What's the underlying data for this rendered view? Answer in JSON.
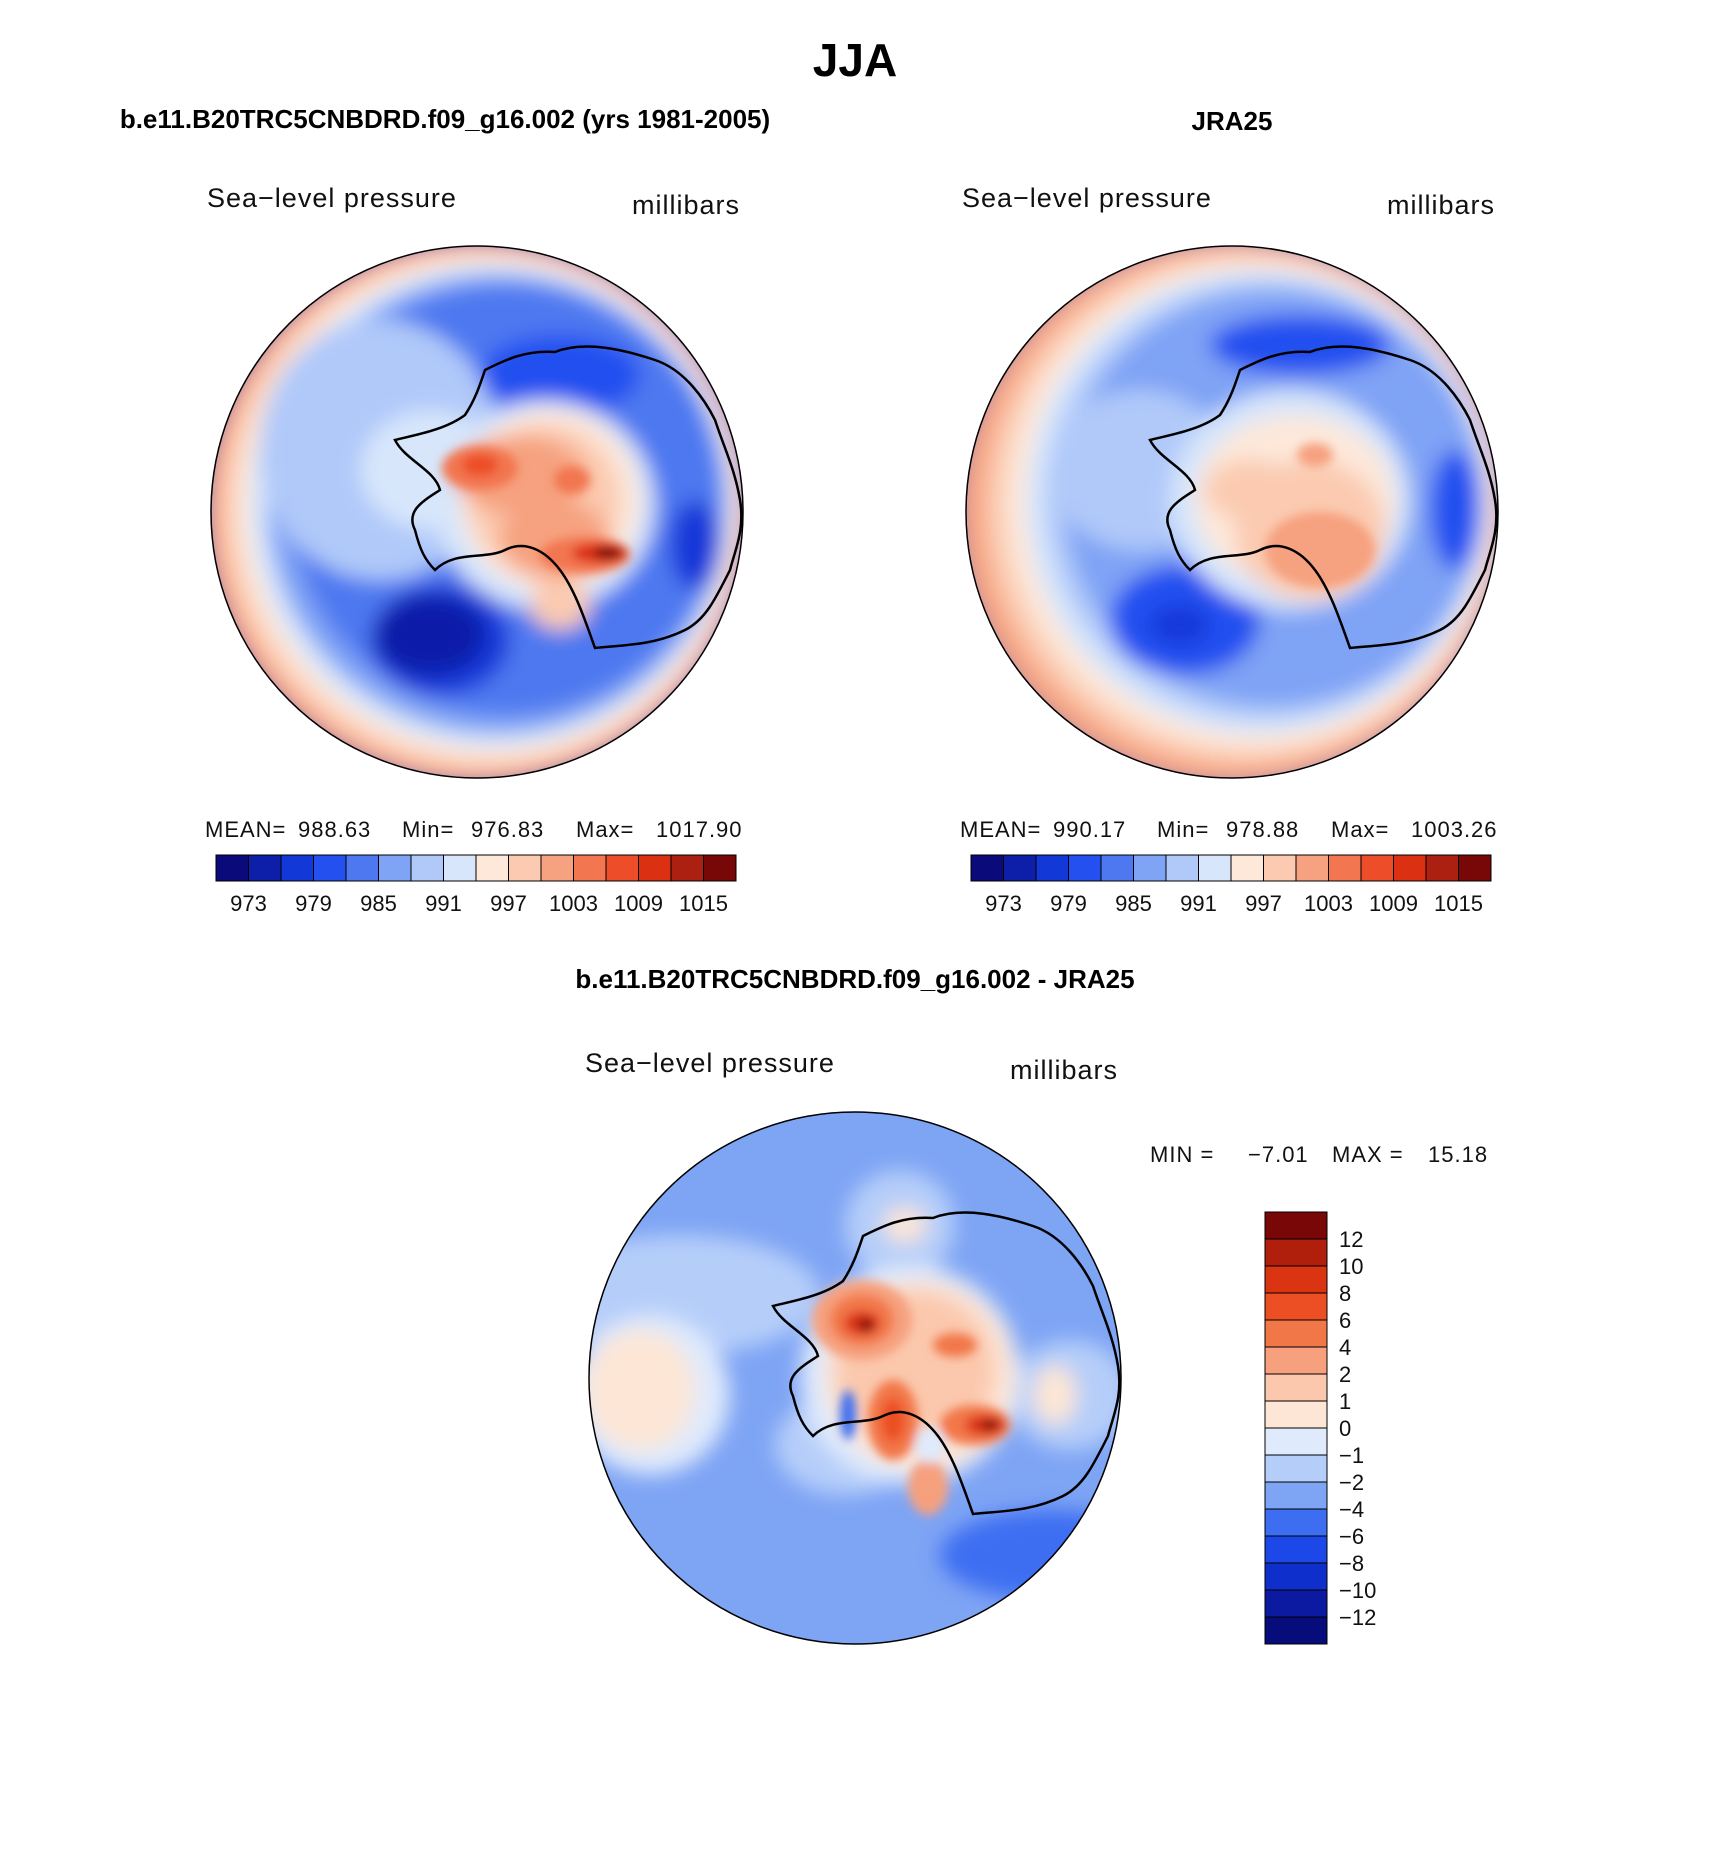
{
  "figure": {
    "title": "JJA"
  },
  "palettes": {
    "abs": [
      "#0a0a7a",
      "#0d1ea8",
      "#1238d8",
      "#2450f0",
      "#4e78f0",
      "#7fa3f5",
      "#b0c9f9",
      "#d7e6fb",
      "#fde8da",
      "#fbcab0",
      "#f6a17f",
      "#f27650",
      "#ed4d28",
      "#dc3013",
      "#ab2010",
      "#780707"
    ],
    "diff": [
      "#060d7a",
      "#0b1aa0",
      "#0f2fcc",
      "#1c48ea",
      "#3d6ef2",
      "#7ea4f4",
      "#b5cef9",
      "#dfeafc",
      "#fde6d5",
      "#fbc8ad",
      "#f6a07e",
      "#f27748",
      "#ec4f24",
      "#db3413",
      "#b01f0c",
      "#7a0707"
    ]
  },
  "panels": {
    "model": {
      "heading": "b.e11.B20TRC5CNBDRD.f09_g16.002 (yrs 1981-2005)",
      "variable": "Sea−level pressure",
      "units": "millibars",
      "mean_label": "MEAN=",
      "mean_value": "988.63",
      "min_label": "Min=",
      "min_value": "976.83",
      "max_label": "Max=",
      "max_value": "1017.90",
      "ticks": [
        "973",
        "979",
        "985",
        "991",
        "997",
        "1003",
        "1009",
        "1015"
      ]
    },
    "obs": {
      "heading": "JRA25",
      "variable": "Sea−level pressure",
      "units": "millibars",
      "mean_label": "MEAN=",
      "mean_value": "990.17",
      "min_label": "Min=",
      "min_value": "978.88",
      "max_label": "Max=",
      "max_value": "1003.26",
      "ticks": [
        "973",
        "979",
        "985",
        "991",
        "997",
        "1003",
        "1009",
        "1015"
      ]
    },
    "diff": {
      "heading": "b.e11.B20TRC5CNBDRD.f09_g16.002 - JRA25",
      "variable": "Sea−level pressure",
      "units": "millibars",
      "min_label": "MIN =",
      "min_value": "−7.01",
      "max_label": "MAX =",
      "max_value": "15.18",
      "ticks": [
        "12",
        "10",
        "8",
        "6",
        "4",
        "2",
        "1",
        "0",
        "−1",
        "−2",
        "−4",
        "−6",
        "−8",
        "−10",
        "−12"
      ]
    }
  }
}
